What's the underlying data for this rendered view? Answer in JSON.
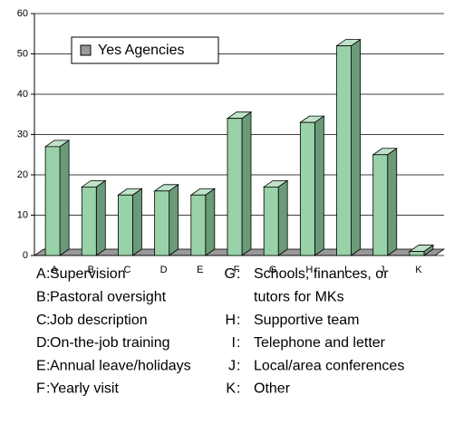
{
  "chart_data": {
    "type": "bar",
    "categories": [
      "A",
      "B",
      "C",
      "D",
      "E",
      "F",
      "G",
      "H",
      "I",
      "J",
      "K"
    ],
    "category_descriptions": [
      [
        "Supervision"
      ],
      [
        "Pastoral oversight"
      ],
      [
        "Job description"
      ],
      [
        "On-the-job training"
      ],
      [
        "Annual leave/holidays"
      ],
      [
        "Yearly visit"
      ],
      [
        "Schools, finances, or",
        "tutors for MKs"
      ],
      [
        "Supportive team"
      ],
      [
        "Telephone and letter"
      ],
      [
        "Local/area conferences"
      ],
      [
        "Other"
      ]
    ],
    "series": [
      {
        "name": "Yes Agencies",
        "color": "#99d1a8",
        "values": [
          27,
          17,
          15,
          16,
          15,
          34,
          17,
          33,
          52,
          25,
          1
        ]
      }
    ],
    "ylim": [
      0,
      60
    ],
    "yticks": [
      0,
      10,
      20,
      30,
      40,
      50,
      60
    ],
    "grid": true
  }
}
